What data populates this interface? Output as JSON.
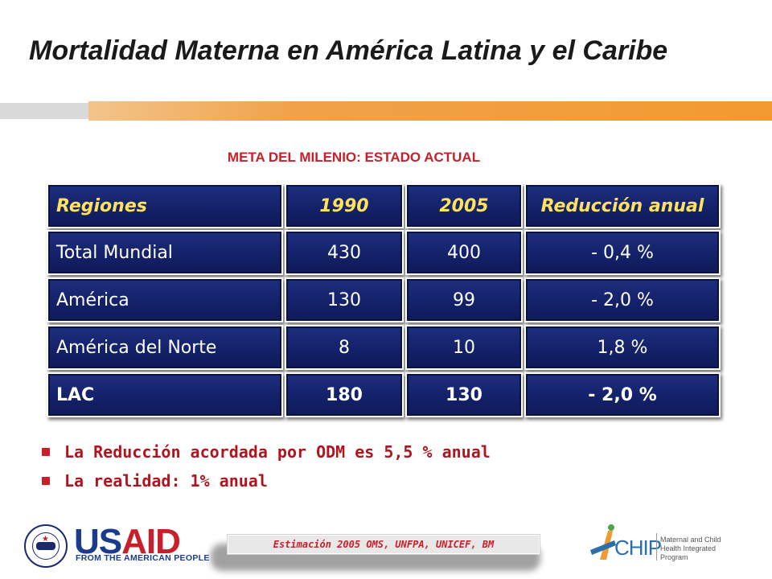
{
  "slide": {
    "title": "Mortalidad Materna en América Latina y el Caribe",
    "subtitle": "META DEL MILENIO: ESTADO ACTUAL"
  },
  "table": {
    "headers": [
      "Regiones",
      "1990",
      "2005",
      "Reducción anual"
    ],
    "rows": [
      [
        "Total Mundial",
        "430",
        "400",
        "- 0,4 %"
      ],
      [
        "América",
        "130",
        "99",
        "- 2,0 %"
      ],
      [
        "América del Norte",
        "8",
        "10",
        "1,8 %"
      ],
      [
        "LAC",
        "180",
        "130",
        "- 2,0 %"
      ]
    ]
  },
  "bullets": [
    "La Reducción acordada por ODM es 5,5 % anual",
    "La realidad: 1% anual"
  ],
  "footer": {
    "usaid_us": "US",
    "usaid_aid": "AID",
    "usaid_tagline": "FROM THE AMERICAN PEOPLE",
    "source": "Estimación 2005 OMS, UNFPA, UNICEF, BM",
    "chip_name": "CHIP",
    "chip_desc": "Maternal and Child Health Integrated Program"
  },
  "colors": {
    "cell_bg": "#14216a",
    "header_text": "#ffe35a",
    "accent_red": "#c8202a",
    "band_orange": "#f29a30"
  }
}
